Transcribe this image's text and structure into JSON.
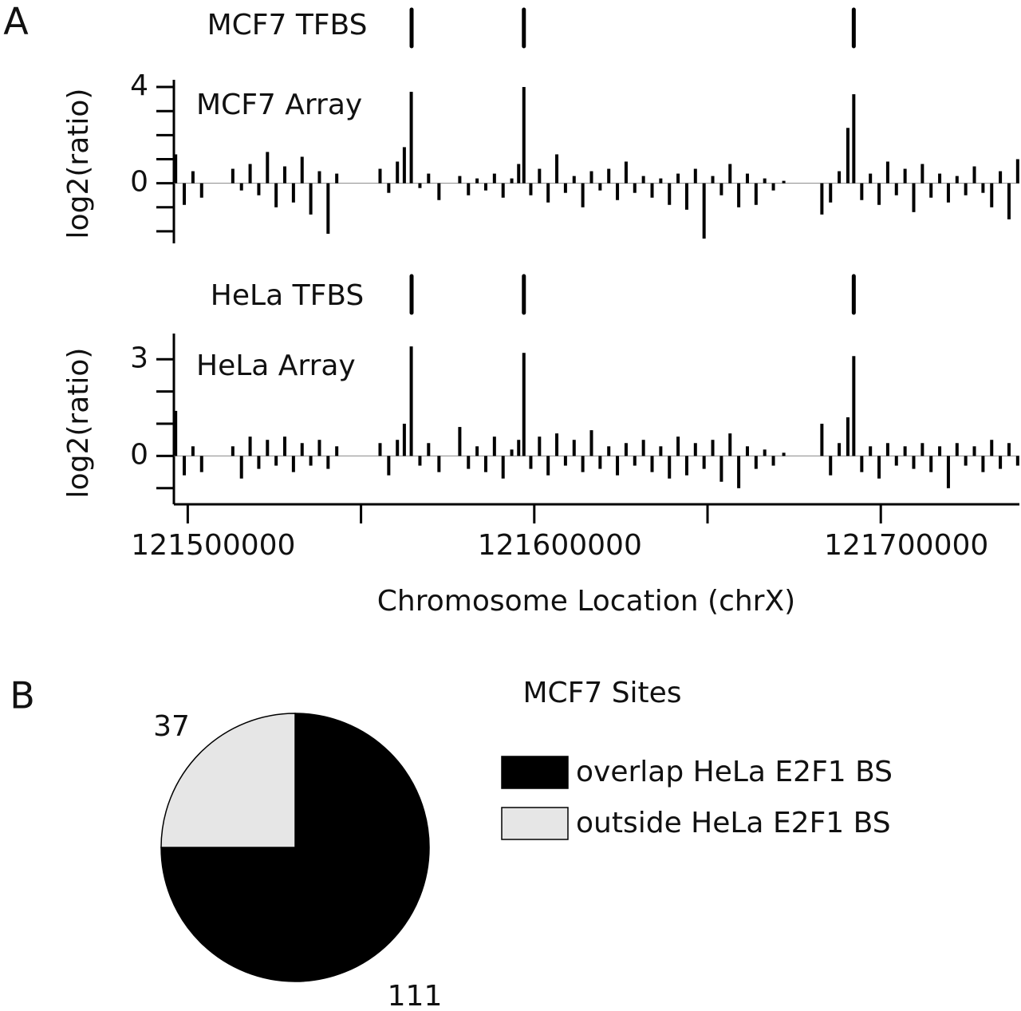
{
  "chart_data": [
    {
      "type": "bar",
      "panel_label": "A",
      "tfbs_label": "MCF7 TFBS",
      "tfbs": [
        121564600,
        121597000,
        121692200
      ],
      "title": "MCF7 Array",
      "ylabel": "log2(ratio)",
      "color": "#000000",
      "x": [
        121496500,
        121499000,
        121501500,
        121504000,
        121513000,
        121515500,
        121518000,
        121520500,
        121523000,
        121525500,
        121528000,
        121530500,
        121533000,
        121535500,
        121538000,
        121540500,
        121543000,
        121555500,
        121558000,
        121560500,
        121562500,
        121564500,
        121567000,
        121569500,
        121572500,
        121578500,
        121581000,
        121583500,
        121586000,
        121588500,
        121591000,
        121593500,
        121595500,
        121597000,
        121599000,
        121601500,
        121604000,
        121606500,
        121609000,
        121611500,
        121614000,
        121616500,
        121619000,
        121621500,
        121624000,
        121626500,
        121629000,
        121631500,
        121634000,
        121636500,
        121639000,
        121641500,
        121644000,
        121646500,
        121649000,
        121651500,
        121654000,
        121656500,
        121659000,
        121661500,
        121664000,
        121666500,
        121669000,
        121672000,
        121683000,
        121685500,
        121688000,
        121690500,
        121692200,
        121694500,
        121697000,
        121699500,
        121702000,
        121704500,
        121707000,
        121709500,
        121712000,
        121714500,
        121717000,
        121719500,
        121722000,
        121724500,
        121727000,
        121729500,
        121732000,
        121734500,
        121737000,
        121739500
      ],
      "values": [
        1.2,
        -0.9,
        0.5,
        -0.6,
        0.6,
        -0.3,
        0.8,
        -0.5,
        1.3,
        -1.0,
        0.7,
        -0.8,
        1.1,
        -1.3,
        0.5,
        -2.1,
        0.4,
        0.6,
        -0.4,
        0.9,
        1.5,
        3.8,
        -0.2,
        0.4,
        -0.7,
        0.3,
        -0.5,
        0.2,
        -0.3,
        0.4,
        -0.6,
        0.2,
        0.8,
        4.0,
        -0.5,
        0.6,
        -0.8,
        1.2,
        -0.4,
        0.3,
        -1.0,
        0.5,
        -0.3,
        0.6,
        -0.7,
        0.9,
        -0.4,
        0.3,
        -0.6,
        0.2,
        -0.9,
        0.4,
        -1.1,
        0.6,
        -2.3,
        0.3,
        -0.5,
        0.8,
        -1.0,
        0.4,
        -0.9,
        0.2,
        -0.3,
        0.1,
        -1.3,
        -0.8,
        0.5,
        2.3,
        3.7,
        -0.7,
        0.4,
        -0.9,
        0.9,
        -0.5,
        0.6,
        -1.2,
        0.8,
        -0.6,
        0.4,
        -0.8,
        0.3,
        -0.5,
        0.7,
        -0.4,
        -1.0,
        0.5,
        -1.5,
        1.0
      ],
      "xlim": [
        121496000,
        121740000
      ],
      "ylim": [
        -2.5,
        4.3
      ],
      "yticks": [
        0,
        4
      ],
      "yminorticks": [
        -2,
        -1,
        1,
        2,
        3
      ]
    },
    {
      "type": "bar",
      "tfbs_label": "HeLa TFBS",
      "tfbs": [
        121564600,
        121597000,
        121692200
      ],
      "title": "HeLa Array",
      "ylabel": "log2(ratio)",
      "xlabel": "Chromosome Location (chrX)",
      "color": "#000000",
      "x": [
        121496500,
        121499000,
        121501500,
        121504000,
        121513000,
        121515500,
        121518000,
        121520500,
        121523000,
        121525500,
        121528000,
        121530500,
        121533000,
        121535500,
        121538000,
        121540500,
        121543000,
        121555500,
        121558000,
        121560500,
        121562500,
        121564500,
        121567000,
        121569500,
        121572500,
        121578500,
        121581000,
        121583500,
        121586000,
        121588500,
        121591000,
        121593500,
        121595500,
        121597000,
        121599000,
        121601500,
        121604000,
        121606500,
        121609000,
        121611500,
        121614000,
        121616500,
        121619000,
        121621500,
        121624000,
        121626500,
        121629000,
        121631500,
        121634000,
        121636500,
        121639000,
        121641500,
        121644000,
        121646500,
        121649000,
        121651500,
        121654000,
        121656500,
        121659000,
        121661500,
        121664000,
        121666500,
        121669000,
        121672000,
        121683000,
        121685500,
        121688000,
        121690500,
        121692200,
        121694500,
        121697000,
        121699500,
        121702000,
        121704500,
        121707000,
        121709500,
        121712000,
        121714500,
        121717000,
        121719500,
        121722000,
        121724500,
        121727000,
        121729500,
        121732000,
        121734500,
        121737000,
        121739500
      ],
      "values": [
        1.4,
        -0.6,
        0.3,
        -0.5,
        0.3,
        -0.7,
        0.6,
        -0.4,
        0.5,
        -0.3,
        0.6,
        -0.5,
        0.4,
        -0.3,
        0.5,
        -0.4,
        0.3,
        0.4,
        -0.6,
        0.5,
        1.0,
        3.4,
        -0.3,
        0.4,
        -0.5,
        0.9,
        -0.4,
        0.3,
        -0.5,
        0.6,
        -0.7,
        0.2,
        0.5,
        3.2,
        -0.4,
        0.6,
        -0.6,
        0.7,
        -0.3,
        0.5,
        -0.5,
        0.8,
        -0.4,
        0.3,
        -0.6,
        0.4,
        -0.3,
        0.5,
        -0.5,
        0.3,
        -0.7,
        0.6,
        -0.6,
        0.4,
        -0.4,
        0.5,
        -0.8,
        0.7,
        -1.0,
        0.3,
        -0.4,
        0.2,
        -0.3,
        0.1,
        1.0,
        -0.6,
        0.4,
        1.2,
        3.1,
        -0.5,
        0.3,
        -0.7,
        0.4,
        -0.3,
        0.3,
        -0.4,
        0.4,
        -0.5,
        0.3,
        -1.0,
        0.4,
        -0.3,
        0.3,
        -0.5,
        0.5,
        -0.4,
        0.4,
        -0.3
      ],
      "xlim": [
        121496000,
        121740000
      ],
      "ylim": [
        -1.5,
        3.8
      ],
      "yticks": [
        0,
        3
      ],
      "yminorticks": [
        -1,
        1,
        2
      ],
      "xticks": [
        121500000,
        121600000,
        121700000
      ],
      "xminorticks": [
        121550000,
        121650000
      ]
    },
    {
      "type": "pie",
      "panel_label": "B",
      "title": "MCF7 Sites",
      "categories": [
        "overlap HeLa E2F1 BS",
        "outside HeLa E2F1 BS"
      ],
      "values": [
        111,
        37
      ],
      "colors": [
        "#000000",
        "#e6e6e6"
      ]
    }
  ]
}
